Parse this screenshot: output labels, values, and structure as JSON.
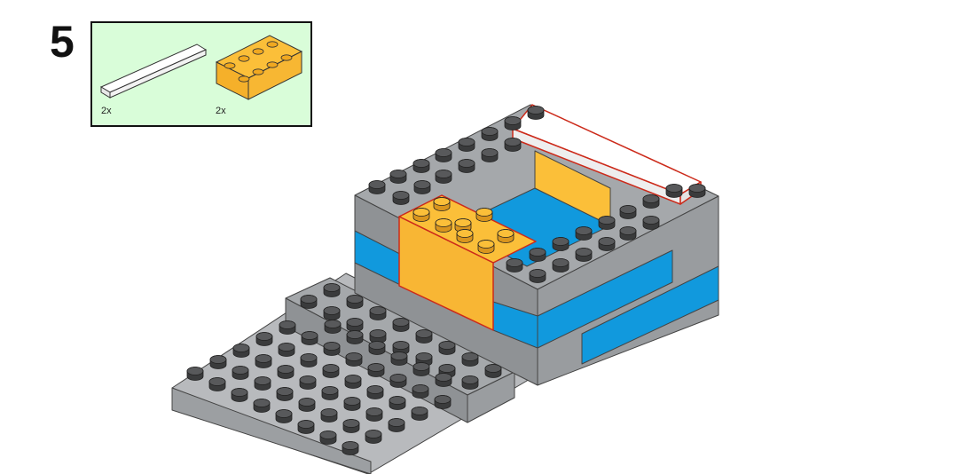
{
  "step": {
    "number": "5"
  },
  "parts": [
    {
      "name": "white-tile-1x8",
      "quantity": "2x",
      "color": "#ffffff"
    },
    {
      "name": "orange-brick-2x4",
      "quantity": "2x",
      "color": "#fbbf39"
    }
  ],
  "colors": {
    "gray": "#a5a8ab",
    "dark_gray": "#58595b",
    "blue": "#1199dd",
    "orange": "#fbbf39",
    "white": "#ffffff",
    "highlight": "#cc2a1a",
    "parts_background": "#d9fdd9"
  }
}
